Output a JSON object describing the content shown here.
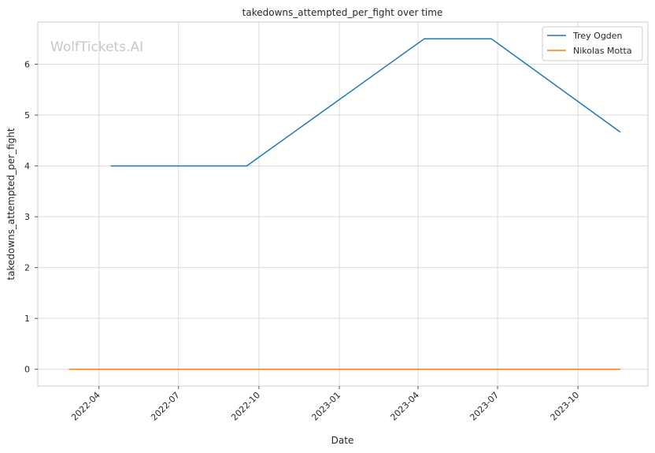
{
  "watermark": "WolfTickets.AI",
  "chart_data": {
    "type": "line",
    "title": "takedowns_attempted_per_fight over time",
    "xlabel": "Date",
    "ylabel": "takedowns_attempted_per_fight",
    "x_ticks": [
      {
        "date": "2022-04-01",
        "label": "2022-04"
      },
      {
        "date": "2022-07-01",
        "label": "2022-07"
      },
      {
        "date": "2022-10-01",
        "label": "2022-10"
      },
      {
        "date": "2023-01-01",
        "label": "2023-01"
      },
      {
        "date": "2023-04-01",
        "label": "2023-04"
      },
      {
        "date": "2023-07-01",
        "label": "2023-07"
      },
      {
        "date": "2023-10-01",
        "label": "2023-10"
      }
    ],
    "y_ticks": [
      0,
      1,
      2,
      3,
      4,
      5,
      6
    ],
    "xlim": [
      "2022-01-21",
      "2023-12-20"
    ],
    "ylim": [
      -0.33,
      6.83
    ],
    "grid": true,
    "legend_position": "upper right",
    "series": [
      {
        "name": "Trey Ogden",
        "color": "#1f77b4",
        "points": [
          {
            "x": "2022-04-15",
            "y": 4.0
          },
          {
            "x": "2022-09-17",
            "y": 4.0
          },
          {
            "x": "2023-04-08",
            "y": 6.5
          },
          {
            "x": "2023-06-24",
            "y": 6.5
          },
          {
            "x": "2023-11-18",
            "y": 4.67
          }
        ]
      },
      {
        "name": "Nikolas Motta",
        "color": "#ff7f0e",
        "points": [
          {
            "x": "2022-02-26",
            "y": 0
          },
          {
            "x": "2023-11-18",
            "y": 0
          }
        ]
      }
    ]
  }
}
